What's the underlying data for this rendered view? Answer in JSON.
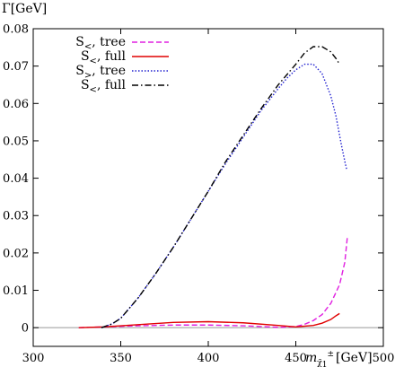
{
  "chart_data": {
    "type": "line",
    "ylabel": "Γ[GeV]",
    "xlabel": "m_χ̃1 [GeV]",
    "xlabel_parts": {
      "symbol": "m",
      "subscript": "χ̃",
      "subsub": "1",
      "superscript": "±",
      "unit": "[GeV]"
    },
    "xlim": [
      300,
      500
    ],
    "ylim": [
      -0.005,
      0.08
    ],
    "xticks": [
      "300",
      "350",
      "400",
      "450",
      "500"
    ],
    "xtick_values": [
      300,
      350,
      400,
      450,
      500
    ],
    "yticks": [
      "0",
      "0.01",
      "0.02",
      "0.03",
      "0.04",
      "0.05",
      "0.06",
      "0.07",
      "0.08"
    ],
    "ytick_values": [
      0,
      0.01,
      0.02,
      0.03,
      0.04,
      0.05,
      0.06,
      0.07,
      0.08
    ],
    "zero_line": true,
    "grid": false,
    "legend": "top-left",
    "series": [
      {
        "name": "S<, tree",
        "label_base": "S",
        "label_sub": "<",
        "label_rest": ", tree",
        "color": "#e020e0",
        "style": "dashed",
        "x": [
          326,
          340,
          360,
          380,
          400,
          420,
          440,
          450,
          455,
          460,
          465,
          470,
          475,
          478,
          479.5
        ],
        "y": [
          0,
          0.0002,
          0.0005,
          0.0007,
          0.0007,
          0.0005,
          0.0001,
          0.0003,
          0.0009,
          0.0019,
          0.0035,
          0.0065,
          0.0115,
          0.0175,
          0.0245
        ]
      },
      {
        "name": "S<, full",
        "label_base": "S",
        "label_sub": "<",
        "label_rest": ", full",
        "color": "#e00000",
        "style": "solid",
        "x": [
          326,
          340,
          360,
          380,
          400,
          420,
          440,
          450,
          460,
          465,
          470,
          473,
          475
        ],
        "y": [
          0,
          0.0002,
          0.0008,
          0.0014,
          0.0016,
          0.0013,
          0.0006,
          0.0002,
          0.0006,
          0.0012,
          0.0022,
          0.0032,
          0.0038
        ]
      },
      {
        "name": "S>, tree",
        "label_base": "S",
        "label_sub": ">",
        "label_rest": ", tree",
        "color": "#2020d0",
        "style": "dotted",
        "x": [
          339,
          345,
          350,
          360,
          370,
          380,
          390,
          400,
          410,
          420,
          430,
          440,
          445,
          450,
          455,
          460,
          465,
          470,
          473,
          476,
          478,
          479
        ],
        "y": [
          0,
          0.001,
          0.0025,
          0.008,
          0.0145,
          0.0215,
          0.029,
          0.0365,
          0.044,
          0.051,
          0.058,
          0.064,
          0.0668,
          0.069,
          0.0705,
          0.0705,
          0.068,
          0.062,
          0.0565,
          0.049,
          0.0445,
          0.0425
        ]
      },
      {
        "name": "S<, full",
        "label_base": "S",
        "label_sub": "<",
        "label_rest": ", full",
        "color": "#000000",
        "style": "dashdot",
        "x": [
          339,
          345,
          350,
          360,
          370,
          380,
          390,
          400,
          410,
          420,
          430,
          440,
          450,
          455,
          460,
          465,
          470,
          473,
          475
        ],
        "y": [
          0,
          0.001,
          0.0025,
          0.008,
          0.0145,
          0.0215,
          0.029,
          0.0365,
          0.0445,
          0.0515,
          0.0585,
          0.065,
          0.0705,
          0.0735,
          0.0752,
          0.0752,
          0.0738,
          0.072,
          0.0705
        ]
      }
    ]
  }
}
